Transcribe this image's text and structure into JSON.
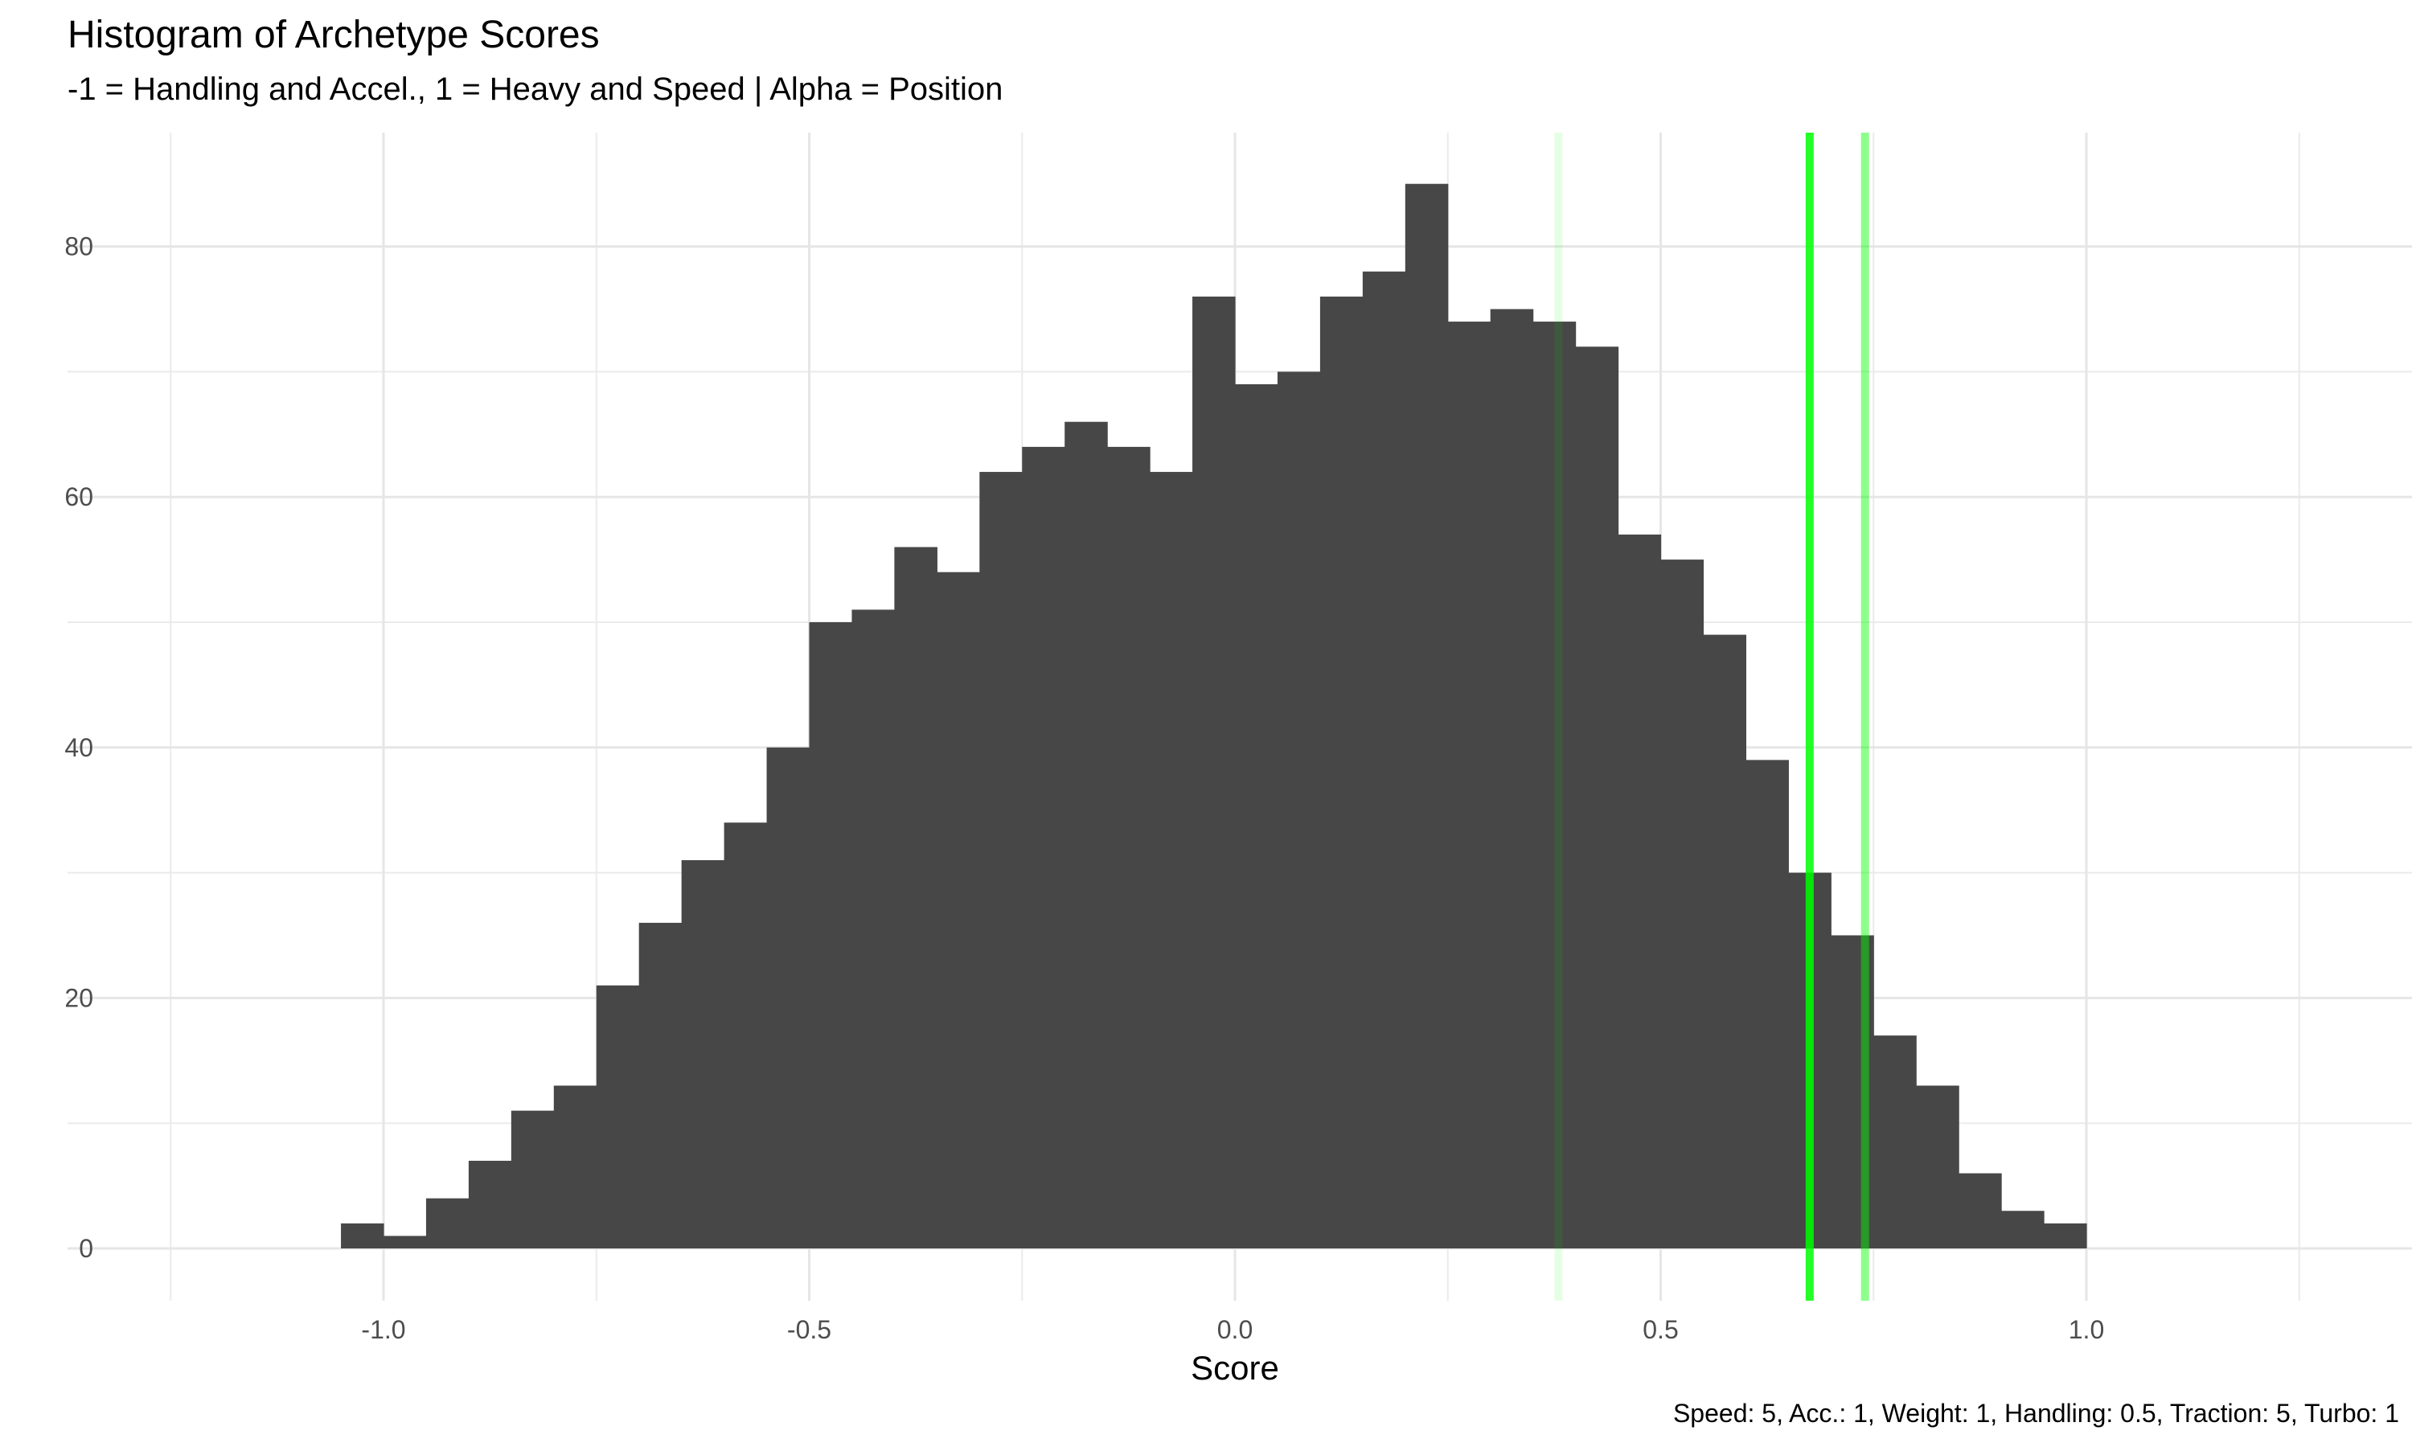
{
  "chart_data": {
    "type": "bar",
    "title": "Histogram of Archetype Scores",
    "subtitle": "-1 = Handling and Accel., 1 = Heavy and Speed | Alpha = Position",
    "caption": "Speed: 5, Acc.: 1, Weight: 1, Handling: 0.5, Traction: 5, Turbo: 1",
    "xlabel": "Score",
    "ylabel": "",
    "xlim": [
      -1.25,
      1.25
    ],
    "ylim": [
      0,
      88
    ],
    "xticks": [
      -1.0,
      -0.5,
      0.0,
      0.5,
      1.0
    ],
    "xtick_labels": [
      "-1.0",
      "-0.5",
      "0.0",
      "0.5",
      "1.0"
    ],
    "yticks": [
      0,
      20,
      40,
      60,
      80
    ],
    "ytick_labels": [
      "0",
      "20",
      "40",
      "60",
      "80"
    ],
    "grid": true,
    "bin_width": 0.05,
    "bin_start": -1.05,
    "counts": [
      2,
      1,
      4,
      7,
      11,
      13,
      21,
      26,
      31,
      34,
      40,
      50,
      51,
      56,
      54,
      62,
      64,
      66,
      64,
      62,
      76,
      69,
      70,
      76,
      78,
      85,
      74,
      75,
      74,
      72,
      57,
      55,
      49,
      39,
      30,
      25,
      17,
      13,
      6,
      3,
      2
    ],
    "bar_color": "#474747",
    "vlines": [
      {
        "x": 0.38,
        "color": "#00ff00",
        "opacity": 0.1
      },
      {
        "x": 0.675,
        "color": "#00ff00",
        "opacity": 0.85
      },
      {
        "x": 0.74,
        "color": "#00ff00",
        "opacity": 0.45
      }
    ]
  }
}
